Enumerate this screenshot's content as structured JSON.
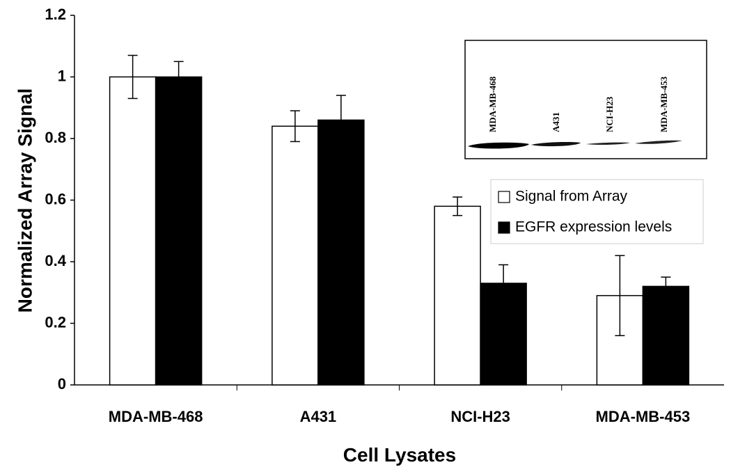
{
  "chart_data": {
    "type": "bar",
    "x_label": "Cell Lysates",
    "y_label": "Normalized Array Signal",
    "categories": [
      "MDA-MB-468",
      "A431",
      "NCI-H23",
      "MDA-MB-453"
    ],
    "series": [
      {
        "name": "Signal from Array",
        "color": "#ffffff",
        "values": [
          1.0,
          0.84,
          0.58,
          0.29
        ],
        "errors": [
          0.07,
          0.05,
          0.03,
          0.13
        ]
      },
      {
        "name": "EGFR expression levels",
        "color": "#000000",
        "values": [
          1.0,
          0.86,
          0.33,
          0.32
        ],
        "errors": [
          0.05,
          0.08,
          0.06,
          0.03
        ]
      }
    ],
    "ylim": [
      0,
      1.2
    ],
    "yticks": [
      0,
      0.2,
      0.4,
      0.6,
      0.8,
      1,
      1.2
    ],
    "grid": false,
    "legend": "upper right",
    "inset_labels": [
      "MDA-MB-468",
      "A431",
      "NCI-H23",
      "MDA-MB-453"
    ]
  }
}
